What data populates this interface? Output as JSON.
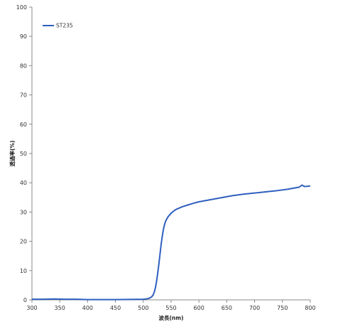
{
  "chart_data": {
    "type": "line",
    "title": "",
    "xlabel": "波長(nm)",
    "ylabel": "透過率(%)",
    "xlim": [
      300,
      800
    ],
    "ylim": [
      0,
      100
    ],
    "xticks": [
      300,
      350,
      400,
      450,
      500,
      550,
      600,
      650,
      700,
      750,
      800
    ],
    "yticks": [
      0,
      10,
      20,
      30,
      40,
      50,
      60,
      70,
      80,
      90,
      100
    ],
    "grid": false,
    "legend": "top-left",
    "series": [
      {
        "name": "ST235",
        "color": "#2f5fbf",
        "x": [
          300,
          320,
          340,
          360,
          380,
          400,
          450,
          500,
          505,
          510,
          515,
          518,
          520,
          522,
          524,
          526,
          528,
          530,
          532,
          534,
          536,
          538,
          540,
          542,
          545,
          550,
          555,
          560,
          570,
          580,
          590,
          600,
          620,
          640,
          660,
          680,
          700,
          720,
          740,
          760,
          780,
          785,
          790,
          800
        ],
        "y": [
          0.2,
          0.2,
          0.3,
          0.2,
          0.2,
          0.1,
          0.1,
          0.2,
          0.3,
          0.5,
          1.0,
          1.8,
          2.8,
          4.3,
          6.5,
          9.2,
          12.2,
          15.5,
          18.8,
          21.6,
          23.9,
          25.6,
          26.8,
          27.6,
          28.5,
          29.6,
          30.4,
          31.0,
          31.8,
          32.4,
          33.0,
          33.5,
          34.2,
          34.9,
          35.6,
          36.1,
          36.5,
          36.9,
          37.3,
          37.8,
          38.5,
          39.2,
          38.7,
          38.9
        ]
      }
    ]
  }
}
